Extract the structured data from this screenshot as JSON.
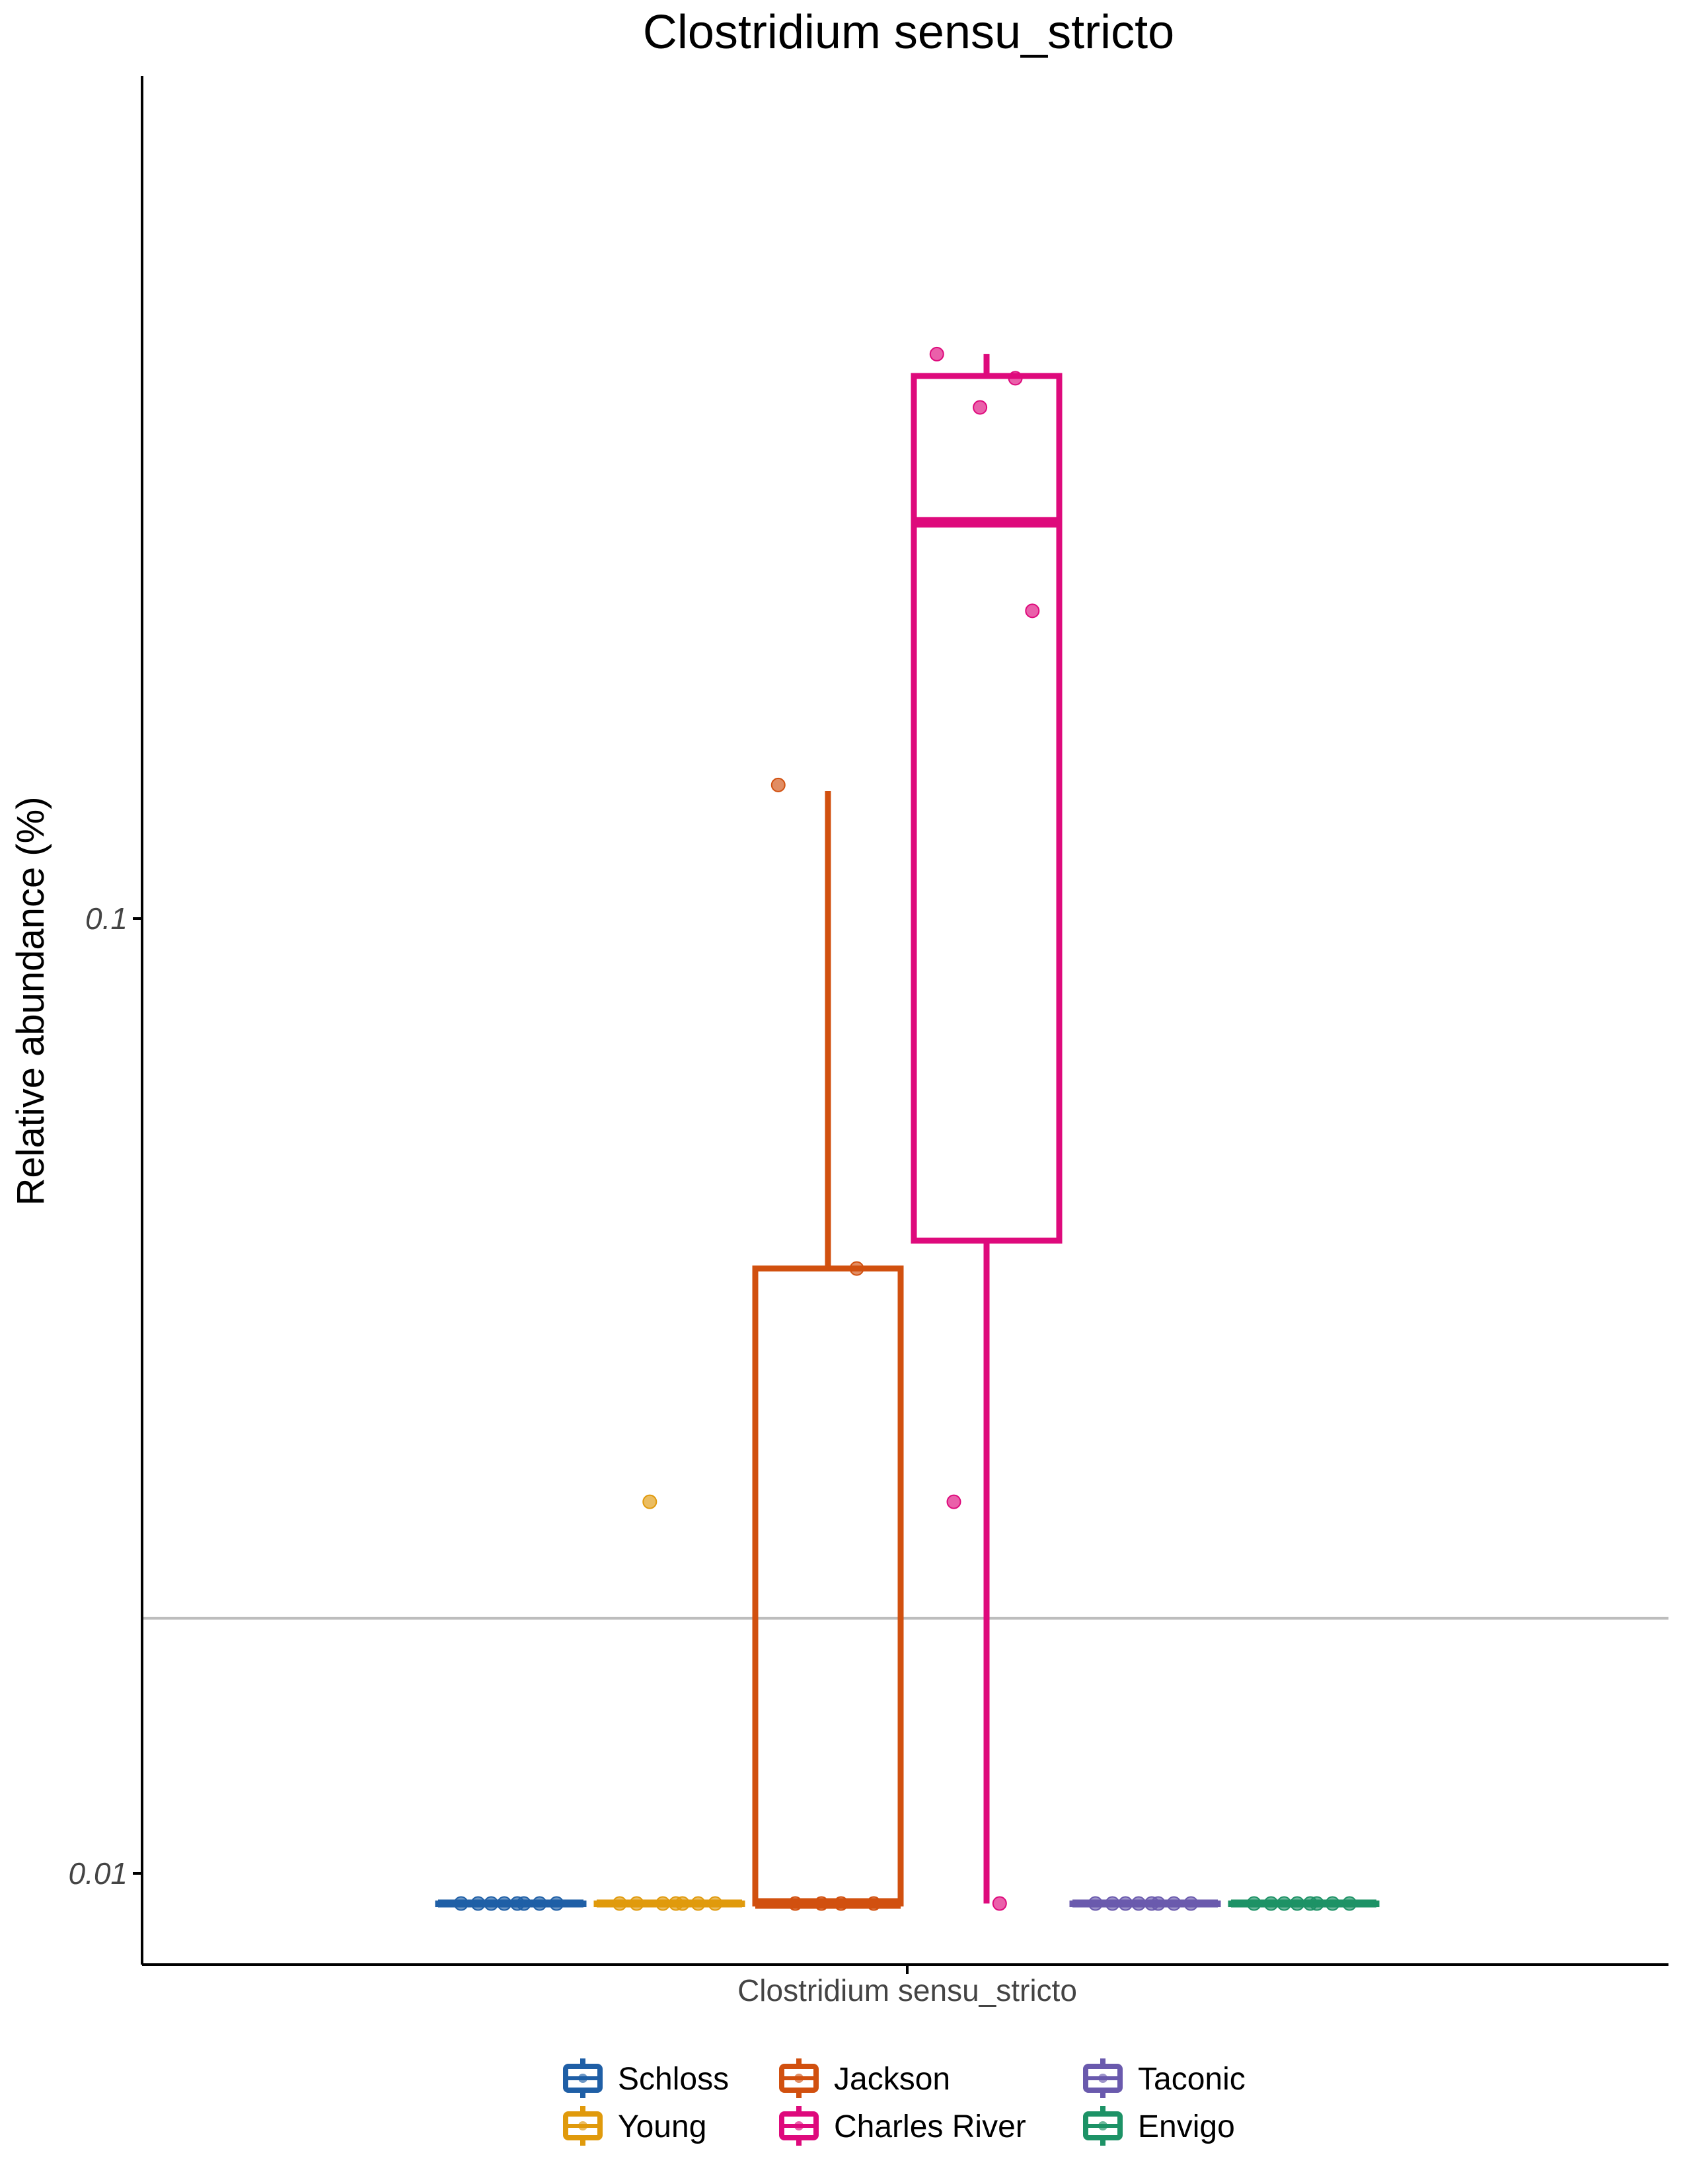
{
  "chart_data": {
    "type": "box",
    "title": "Clostridium sensu_stricto",
    "xlabel": "",
    "ylabel": "Relative abundance (%)",
    "y_scale": "log10",
    "ylim": [
      0.0078,
      0.44
    ],
    "y_ticks": [
      {
        "value": 0.1,
        "label": "0.1"
      },
      {
        "value": 0.01,
        "label": "0.01"
      }
    ],
    "x_tick_label": "Clostridium sensu_stricto",
    "reference_line": {
      "value": 0.0185,
      "color": "#bdbdbd"
    },
    "legend_position": "bottom",
    "series": [
      {
        "name": "Schloss",
        "color": "#1f5fa6",
        "box": {
          "min": 0.0093,
          "q1": 0.0093,
          "median": 0.0093,
          "q3": 0.0093,
          "max": 0.0093
        },
        "points": [
          0.0093,
          0.0093,
          0.0093,
          0.0093,
          0.0093,
          0.0093,
          0.0093,
          0.0093
        ]
      },
      {
        "name": "Young",
        "color": "#e09a0c",
        "box": {
          "min": 0.0093,
          "q1": 0.0093,
          "median": 0.0093,
          "q3": 0.0093,
          "max": 0.0093
        },
        "points": [
          0.0093,
          0.0093,
          0.0093,
          0.0093,
          0.0093,
          0.0093,
          0.0093,
          0.0245
        ]
      },
      {
        "name": "Jackson",
        "color": "#d1500f",
        "box": {
          "min": 0.0093,
          "q1": 0.0093,
          "median": 0.0093,
          "q3": 0.043,
          "max": 0.136
        },
        "points": [
          0.0093,
          0.0093,
          0.0093,
          0.0093,
          0.043,
          0.138
        ]
      },
      {
        "name": "Charles River",
        "color": "#de0a7c",
        "box": {
          "min": 0.0093,
          "q1": 0.046,
          "median": 0.26,
          "q3": 0.37,
          "max": 0.39
        },
        "points": [
          0.0093,
          0.0245,
          0.21,
          0.343,
          0.368,
          0.39
        ]
      },
      {
        "name": "Taconic",
        "color": "#6a5aad",
        "box": {
          "min": 0.0093,
          "q1": 0.0093,
          "median": 0.0093,
          "q3": 0.0093,
          "max": 0.0093
        },
        "points": [
          0.0093,
          0.0093,
          0.0093,
          0.0093,
          0.0093,
          0.0093,
          0.0093,
          0.0093
        ]
      },
      {
        "name": "Envigo",
        "color": "#1d9266",
        "box": {
          "min": 0.0093,
          "q1": 0.0093,
          "median": 0.0093,
          "q3": 0.0093,
          "max": 0.0093
        },
        "points": [
          0.0093,
          0.0093,
          0.0093,
          0.0093,
          0.0093,
          0.0093,
          0.0093,
          0.0093
        ]
      }
    ]
  }
}
